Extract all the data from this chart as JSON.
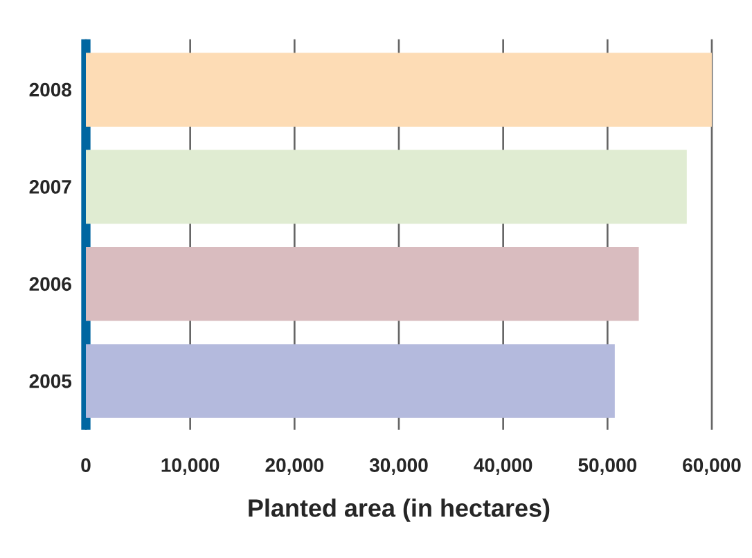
{
  "chart_data": {
    "type": "bar",
    "orientation": "horizontal",
    "xlabel": "Planted area (in hectares)",
    "categories": [
      "2008",
      "2007",
      "2006",
      "2005"
    ],
    "values": [
      60000,
      57600,
      53000,
      50700
    ],
    "colors": [
      "#fddcb5",
      "#e0ecd2",
      "#d9bcbf",
      "#b4badd"
    ],
    "xlim": [
      0,
      60000
    ],
    "xticks": [
      0,
      {
        "value": 10000,
        "label": "10,000"
      },
      {
        "value": 20000,
        "label": "20,000"
      },
      {
        "value": 30000,
        "label": "30,000"
      },
      {
        "value": 40000,
        "label": "40,000"
      },
      {
        "value": 50000,
        "label": "50,000"
      },
      {
        "value": 60000,
        "label": "60,000"
      }
    ],
    "grid": "x"
  }
}
